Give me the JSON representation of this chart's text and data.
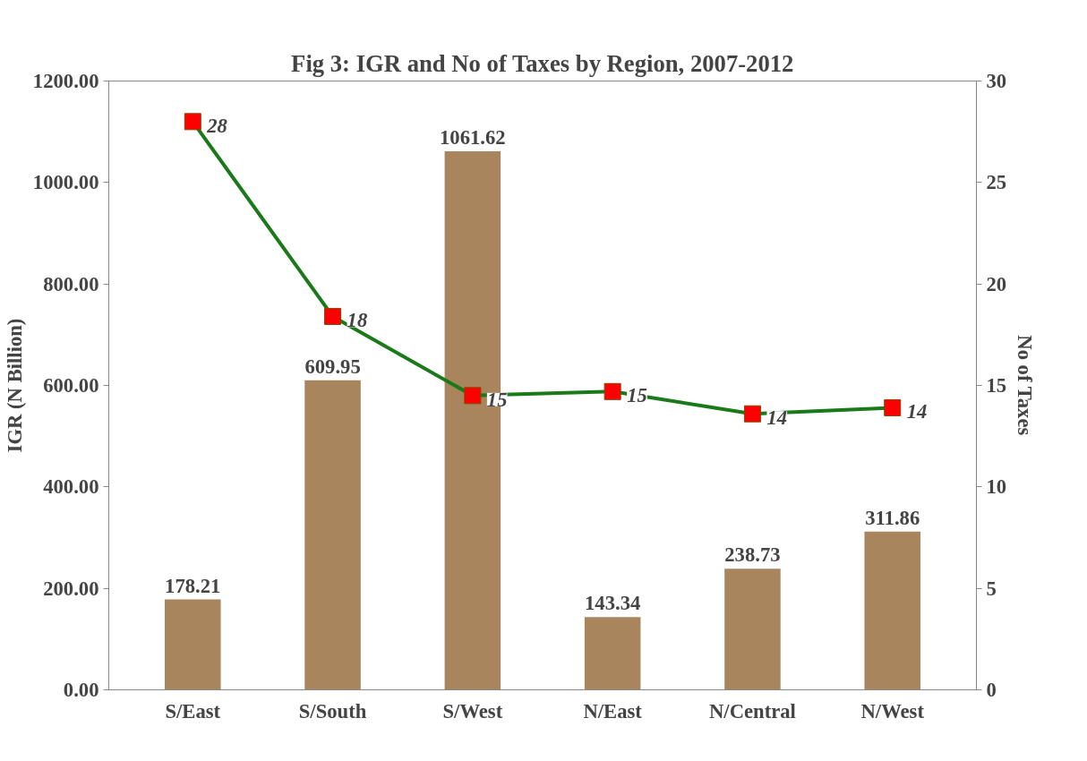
{
  "chart_data": {
    "type": "bar",
    "title": "Fig 3: IGR and No of Taxes by Region, 2007-2012",
    "ylabel": "IGR (N Billion)",
    "y2label": "No of Taxes",
    "categories": [
      "S/East",
      "S/South",
      "S/West",
      "N/East",
      "N/Central",
      "N/West"
    ],
    "series": [
      {
        "color": "#a8855c",
        "values": [
          178.21,
          609.95,
          1061.62,
          143.34,
          238.73,
          311.86
        ],
        "data_labels": true
      },
      {
        "type": "line",
        "axis": "y2",
        "color": "#1a7a1a",
        "marker": "square",
        "colors": [
          "#ff0000",
          "#ff0000",
          "#ff0000",
          "#ff0000",
          "#ff0000",
          "#ff0000"
        ],
        "line_style": "solid",
        "values": [
          28,
          18.4,
          14.5,
          14.7,
          13.6,
          13.9
        ],
        "value_labels": [
          "28",
          "18",
          "15",
          "15",
          "14",
          "14"
        ]
      }
    ],
    "ylim": [
      0,
      1200
    ],
    "yticks": [
      {
        "value": 0,
        "label": "0.00"
      },
      {
        "value": 200,
        "label": "200.00"
      },
      {
        "value": 400,
        "label": "400.00"
      },
      {
        "value": 600,
        "label": "600.00"
      },
      {
        "value": 800,
        "label": "800.00"
      },
      {
        "value": 1000,
        "label": "1000.00"
      },
      {
        "value": 1200,
        "label": "1200.00"
      }
    ],
    "y2lim": [
      0,
      30
    ],
    "y2ticks": [
      0,
      5,
      10,
      15,
      20,
      25,
      30
    ],
    "grid": false
  }
}
